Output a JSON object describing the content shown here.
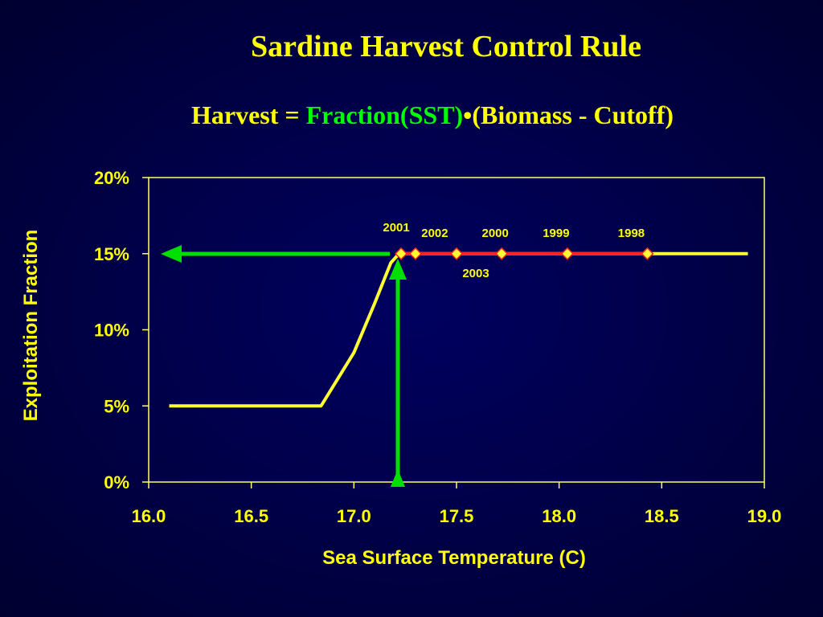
{
  "chart_data": {
    "type": "line",
    "title": "Sardine Harvest Control Rule",
    "subtitle": [
      "Harvest =",
      "Fraction(SST)",
      "•(Biomass - Cutoff)"
    ],
    "x_label": "Sea Surface Temperature (C)",
    "y_label": "Exploitation Fraction",
    "xlim": [
      16.0,
      19.0
    ],
    "ylim": [
      0,
      20
    ],
    "xticks": [
      {
        "value": 16.0,
        "label": "16.0"
      },
      {
        "value": 16.5,
        "label": "16.5"
      },
      {
        "value": 17.0,
        "label": "17.0"
      },
      {
        "value": 17.5,
        "label": "17.5"
      },
      {
        "value": 18.0,
        "label": "18.0"
      },
      {
        "value": 18.5,
        "label": "18.5"
      },
      {
        "value": 19.0,
        "label": "19.0"
      }
    ],
    "yticks": [
      {
        "value": 0,
        "label": "0%"
      },
      {
        "value": 5,
        "label": "5%"
      },
      {
        "value": 10,
        "label": "10%"
      },
      {
        "value": 15,
        "label": "15%"
      },
      {
        "value": 20,
        "label": "20%"
      }
    ],
    "series": [
      {
        "color": "#ffff33",
        "x": [
          16.1,
          16.84,
          17.0,
          17.1,
          17.18,
          17.22,
          18.92
        ],
        "values": [
          5,
          5,
          8.5,
          11.7,
          14.4,
          15,
          15
        ]
      },
      {
        "color": "#ff2020",
        "marker_color": "#ffff33",
        "x": [
          17.23,
          17.3,
          17.5,
          17.72,
          18.04,
          18.43
        ],
        "values": [
          15,
          15,
          15,
          15,
          15,
          15
        ],
        "labels": [
          "2001",
          "2002",
          "2003",
          "2000",
          "1999",
          "1998"
        ]
      }
    ]
  }
}
